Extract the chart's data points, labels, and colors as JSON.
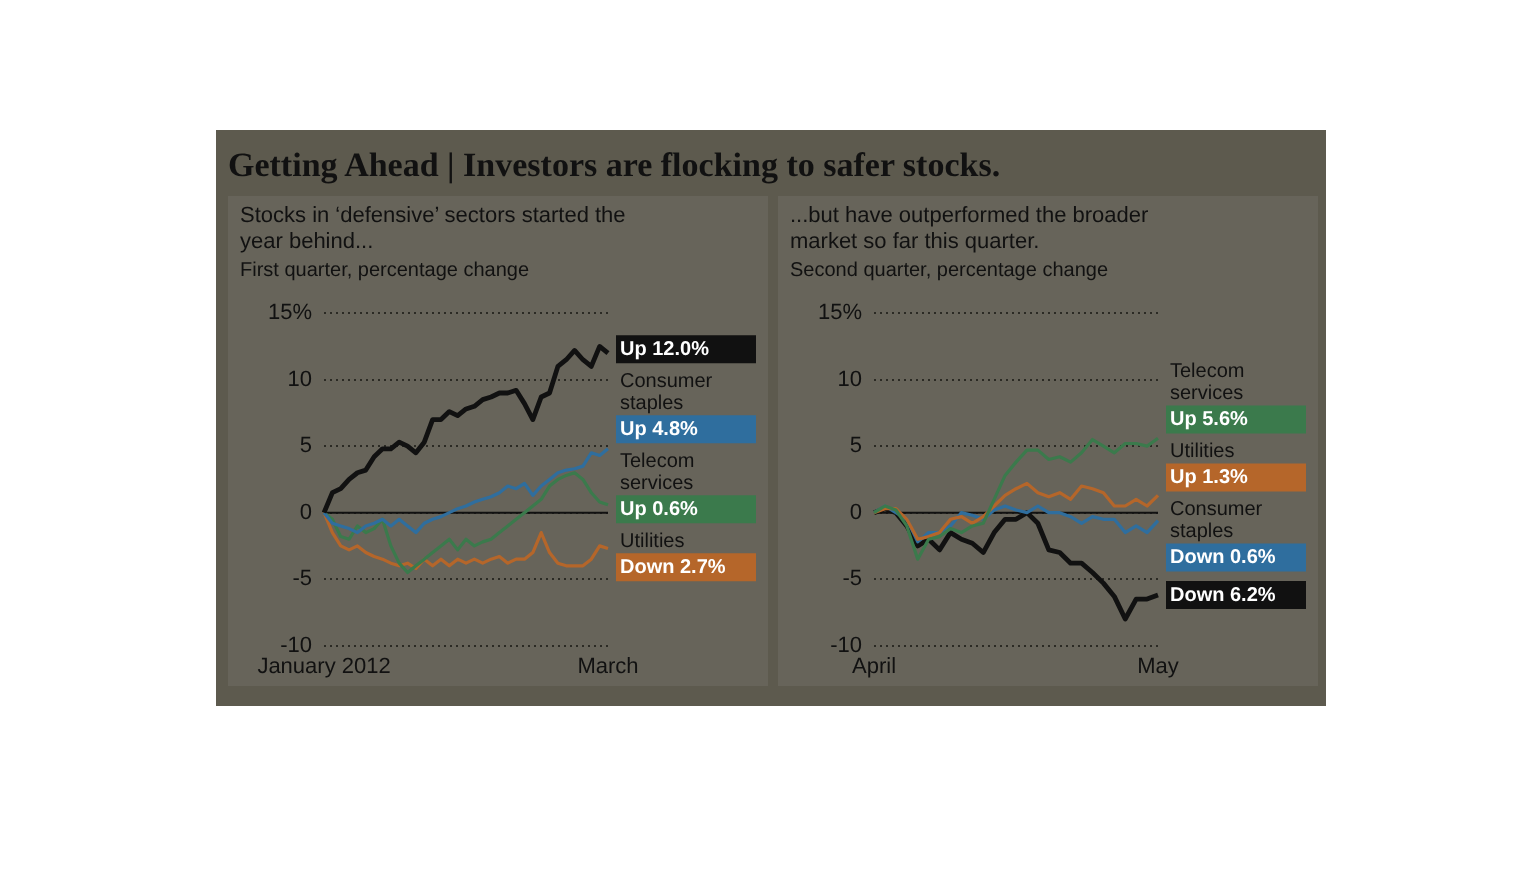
{
  "chart_data": [
    {
      "type": "line",
      "title": "Getting Ahead | Investors are flocking to safer stocks.",
      "subtitle": "Stocks in ‘defensive’ sectors started the year behind...",
      "ylabel": "First quarter, percentage change",
      "categories": [
        "January 2012",
        null,
        null,
        null,
        null,
        null,
        null,
        null,
        null,
        null,
        null,
        null,
        null,
        null,
        null,
        null,
        null,
        null,
        null,
        null,
        null,
        null,
        null,
        null,
        null,
        null,
        null,
        null,
        null,
        null,
        null,
        null,
        null,
        null,
        "March"
      ],
      "series": [
        {
          "color": "#111111",
          "values": [
            0,
            1.5,
            1.8,
            2.5,
            3,
            3.2,
            4.2,
            4.8,
            4.8,
            5.3,
            5,
            4.5,
            5.3,
            7,
            7,
            7.6,
            7.3,
            7.8,
            8,
            8.5,
            8.7,
            9,
            9,
            9.2,
            8.2,
            7,
            8.7,
            9,
            11,
            11.5,
            12.2,
            11.5,
            11,
            12.5,
            12.0
          ],
          "value_labels": [
            null,
            null,
            null,
            null,
            null,
            null,
            null,
            null,
            null,
            null,
            null,
            null,
            null,
            null,
            null,
            null,
            null,
            null,
            null,
            null,
            null,
            null,
            null,
            null,
            null,
            null,
            null,
            null,
            null,
            null,
            null,
            null,
            null,
            null,
            "Up 12.0%"
          ]
        },
        {
          "name": "Consumer staples",
          "color": "#2f6e9e",
          "values": [
            0,
            -0.8,
            -1,
            -1.2,
            -1.5,
            -1,
            -0.8,
            -0.5,
            -1,
            -0.5,
            -1,
            -1.5,
            -0.8,
            -0.5,
            -0.3,
            0,
            0.3,
            0.5,
            0.8,
            1,
            1.2,
            1.5,
            2,
            1.8,
            2.2,
            1.3,
            2,
            2.5,
            3,
            3.2,
            3.3,
            3.5,
            4.5,
            4.3,
            4.8
          ],
          "value_labels": [
            null,
            null,
            null,
            null,
            null,
            null,
            null,
            null,
            null,
            null,
            null,
            null,
            null,
            null,
            null,
            null,
            null,
            null,
            null,
            null,
            null,
            null,
            null,
            null,
            null,
            null,
            null,
            null,
            null,
            null,
            null,
            null,
            null,
            null,
            "Up 4.8%"
          ]
        },
        {
          "name": "Telecom services",
          "color": "#3b7a4c",
          "values": [
            0,
            -0.5,
            -1.8,
            -2,
            -1,
            -1.5,
            -1.2,
            -0.5,
            -2.5,
            -3.8,
            -4.5,
            -4,
            -3.5,
            -3,
            -2.5,
            -2,
            -2.8,
            -2,
            -2.5,
            -2.2,
            -2,
            -1.5,
            -1,
            -0.5,
            0,
            0.5,
            1,
            2,
            2.5,
            2.8,
            3,
            2.5,
            1.5,
            0.8,
            0.6
          ],
          "value_labels": [
            null,
            null,
            null,
            null,
            null,
            null,
            null,
            null,
            null,
            null,
            null,
            null,
            null,
            null,
            null,
            null,
            null,
            null,
            null,
            null,
            null,
            null,
            null,
            null,
            null,
            null,
            null,
            null,
            null,
            null,
            null,
            null,
            null,
            null,
            "Up 0.6%"
          ]
        },
        {
          "name": "Utilities",
          "color": "#b5662a",
          "values": [
            0,
            -1.5,
            -2.5,
            -2.8,
            -2.5,
            -3,
            -3.3,
            -3.5,
            -3.8,
            -4,
            -3.8,
            -4.2,
            -3.5,
            -4,
            -3.5,
            -4,
            -3.5,
            -3.8,
            -3.5,
            -3.8,
            -3.5,
            -3.3,
            -3.8,
            -3.5,
            -3.5,
            -3,
            -1.5,
            -3,
            -3.8,
            -4,
            -4,
            -4,
            -3.5,
            -2.5,
            -2.7
          ],
          "value_labels": [
            null,
            null,
            null,
            null,
            null,
            null,
            null,
            null,
            null,
            null,
            null,
            null,
            null,
            null,
            null,
            null,
            null,
            null,
            null,
            null,
            null,
            null,
            null,
            null,
            null,
            null,
            null,
            null,
            null,
            null,
            null,
            null,
            null,
            null,
            "Down 2.7%"
          ]
        }
      ],
      "ylim": [
        -10,
        15
      ],
      "yticks": [
        -10,
        -5,
        0,
        5,
        10,
        {
          "value": 15,
          "label": "15%"
        }
      ],
      "grid": "y",
      "legend": false,
      "marker": "none",
      "line_style": "solid",
      "ref_lines": [
        {
          "axis": "y",
          "value": 0,
          "color": "#111111"
        }
      ]
    },
    {
      "type": "line",
      "subtitle": "...but have outperformed the broader market so far this quarter.",
      "ylabel": "Second quarter, percentage change",
      "categories": [
        "April",
        null,
        null,
        null,
        null,
        null,
        null,
        null,
        null,
        null,
        null,
        null,
        null,
        null,
        null,
        null,
        null,
        null,
        null,
        null,
        null,
        null,
        null,
        null,
        null,
        null,
        "May"
      ],
      "series": [
        {
          "name": "Telecom services",
          "color": "#3b7a4c",
          "values": [
            0,
            0.5,
            0.2,
            -1,
            -3.5,
            -2,
            -1.8,
            -1.2,
            -1.5,
            -1,
            -0.8,
            1,
            2.8,
            3.8,
            4.7,
            4.7,
            4,
            4.2,
            3.8,
            4.5,
            5.5,
            5,
            4.5,
            5.2,
            5.2,
            5,
            5.6
          ],
          "value_labels": [
            null,
            null,
            null,
            null,
            null,
            null,
            null,
            null,
            null,
            null,
            null,
            null,
            null,
            null,
            null,
            null,
            null,
            null,
            null,
            null,
            null,
            null,
            null,
            null,
            null,
            null,
            "Up 5.6%"
          ]
        },
        {
          "name": "Utilities",
          "color": "#b5662a",
          "values": [
            0,
            0.3,
            0.3,
            -0.5,
            -2,
            -1.8,
            -1.5,
            -0.5,
            -0.3,
            -0.8,
            -0.3,
            0.5,
            1.3,
            1.8,
            2.2,
            1.5,
            1.2,
            1.5,
            1,
            2,
            1.8,
            1.5,
            0.5,
            0.5,
            1,
            0.5,
            1.3
          ],
          "value_labels": [
            null,
            null,
            null,
            null,
            null,
            null,
            null,
            null,
            null,
            null,
            null,
            null,
            null,
            null,
            null,
            null,
            null,
            null,
            null,
            null,
            null,
            null,
            null,
            null,
            null,
            null,
            "Up 1.3%"
          ]
        },
        {
          "name": "Consumer staples",
          "color": "#2f6e9e",
          "values": [
            0,
            0.5,
            0,
            -0.5,
            -2.2,
            -1.5,
            -1.5,
            -1,
            0,
            -0.2,
            -0.5,
            0.2,
            0.5,
            0.2,
            0,
            0.5,
            0,
            0,
            -0.3,
            -0.8,
            -0.3,
            -0.5,
            -0.5,
            -1.5,
            -1,
            -1.5,
            -0.6
          ],
          "value_labels": [
            null,
            null,
            null,
            null,
            null,
            null,
            null,
            null,
            null,
            null,
            null,
            null,
            null,
            null,
            null,
            null,
            null,
            null,
            null,
            null,
            null,
            null,
            null,
            null,
            null,
            null,
            "Down 0.6%"
          ]
        },
        {
          "color": "#111111",
          "values": [
            0,
            0.3,
            0,
            -1,
            -2.5,
            -2,
            -2.8,
            -1.5,
            -2,
            -2.3,
            -3,
            -1.5,
            -0.5,
            -0.5,
            0,
            -0.8,
            -2.8,
            -3,
            -3.8,
            -3.8,
            -4.5,
            -5.3,
            -6.3,
            -8,
            -6.5,
            -6.5,
            -6.2
          ],
          "value_labels": [
            null,
            null,
            null,
            null,
            null,
            null,
            null,
            null,
            null,
            null,
            null,
            null,
            null,
            null,
            null,
            null,
            null,
            null,
            null,
            null,
            null,
            null,
            null,
            null,
            null,
            null,
            "Down 6.2%"
          ]
        }
      ],
      "ylim": [
        -10,
        15
      ],
      "yticks": [
        -10,
        -5,
        0,
        5,
        10,
        {
          "value": 15,
          "label": "15%"
        }
      ],
      "grid": "y",
      "legend": false,
      "marker": "none",
      "line_style": "solid",
      "ref_lines": [
        {
          "axis": "y",
          "value": 0,
          "color": "#111111"
        }
      ]
    }
  ]
}
